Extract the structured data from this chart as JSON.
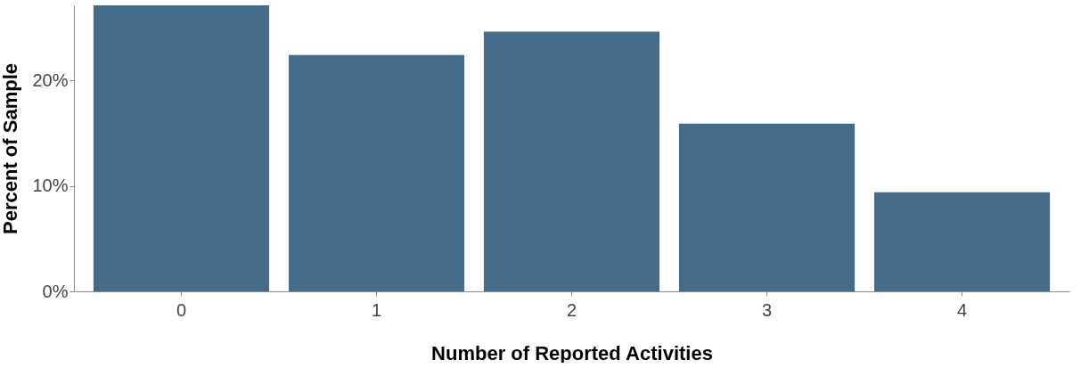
{
  "chart_data": {
    "type": "bar",
    "xlabel": "Number of Reported Activities",
    "ylabel": "Percent of Sample",
    "categories": [
      "0",
      "1",
      "2",
      "3",
      "4"
    ],
    "values": [
      27.1,
      22.4,
      24.6,
      15.9,
      9.4
    ],
    "color": "#466c8a",
    "ylim": [
      0,
      27.1
    ],
    "yticks": [
      {
        "value": 0,
        "label": "0%"
      },
      {
        "value": 10,
        "label": "10%"
      },
      {
        "value": 20,
        "label": "20%"
      }
    ],
    "grid": false
  }
}
